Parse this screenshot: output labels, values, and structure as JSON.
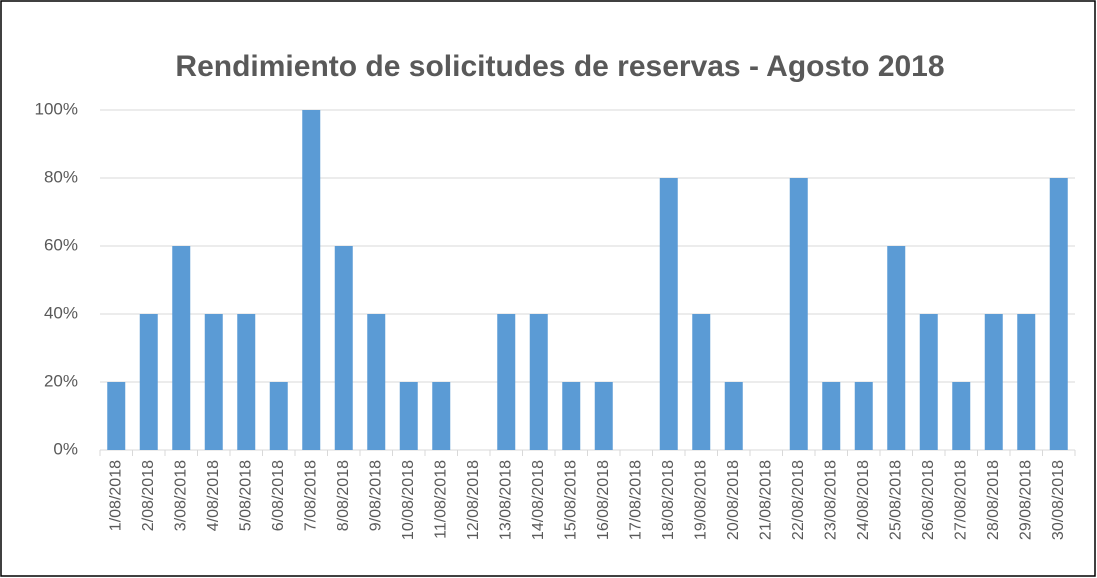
{
  "chart_data": {
    "type": "bar",
    "title": "Rendimiento de solicitudes de reservas - Agosto 2018",
    "categories": [
      "1/08/2018",
      "2/08/2018",
      "3/08/2018",
      "4/08/2018",
      "5/08/2018",
      "6/08/2018",
      "7/08/2018",
      "8/08/2018",
      "9/08/2018",
      "10/08/2018",
      "11/08/2018",
      "12/08/2018",
      "13/08/2018",
      "14/08/2018",
      "15/08/2018",
      "16/08/2018",
      "17/08/2018",
      "18/08/2018",
      "19/08/2018",
      "20/08/2018",
      "21/08/2018",
      "22/08/2018",
      "23/08/2018",
      "24/08/2018",
      "25/08/2018",
      "26/08/2018",
      "27/08/2018",
      "28/08/2018",
      "29/08/2018",
      "30/08/2018"
    ],
    "values": [
      20,
      40,
      60,
      40,
      40,
      20,
      100,
      60,
      40,
      20,
      20,
      0,
      40,
      40,
      20,
      20,
      0,
      80,
      40,
      20,
      0,
      80,
      20,
      20,
      60,
      40,
      20,
      40,
      40,
      80
    ],
    "color": "#5b9bd5",
    "ylim": [
      0,
      100
    ],
    "yticks": [
      {
        "value": 0,
        "label": "0%"
      },
      {
        "value": 20,
        "label": "20%"
      },
      {
        "value": 40,
        "label": "40%"
      },
      {
        "value": 60,
        "label": "60%"
      },
      {
        "value": 80,
        "label": "80%"
      },
      {
        "value": 100,
        "label": "100%"
      }
    ],
    "grid": true
  }
}
